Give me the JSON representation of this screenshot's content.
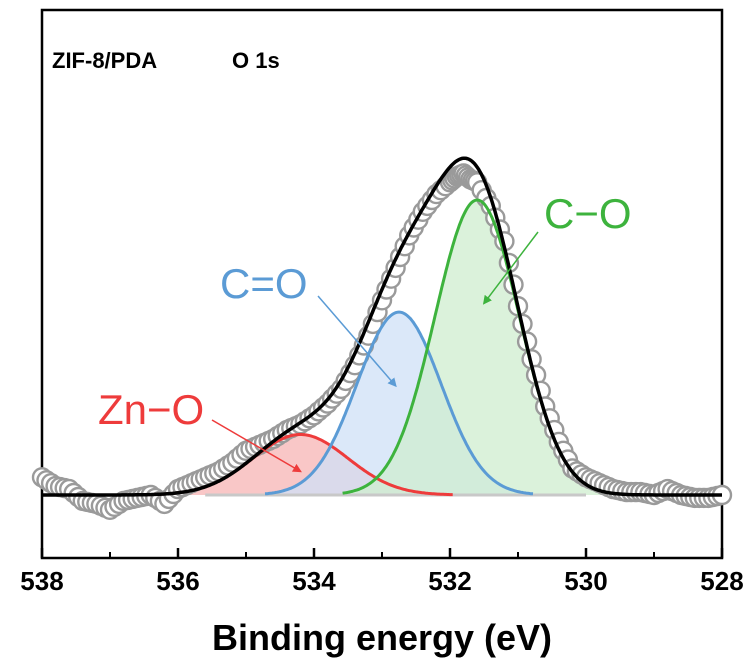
{
  "chart_data": {
    "type": "line",
    "title": "",
    "sample_label": "ZIF-8/PDA",
    "region_label": "O 1s",
    "xlabel": "Binding energy (eV)",
    "ylabel": "",
    "xlim": [
      538,
      528
    ],
    "x_reversed": true,
    "ylim": [
      -0.2,
      1.2
    ],
    "x_ticks": [
      538,
      536,
      534,
      532,
      530,
      528
    ],
    "baseline": 0.0,
    "series": [
      {
        "name": "Zn−O",
        "kind": "component",
        "center": 534.2,
        "amplitude": 0.205,
        "sigma": 0.7,
        "color": "#ee3b3b",
        "fill": "#f7b4b4"
      },
      {
        "name": "C=O",
        "kind": "component",
        "center": 532.75,
        "amplitude": 0.62,
        "sigma": 0.62,
        "color": "#5b9bd5",
        "fill": "#cfe0f7"
      },
      {
        "name": "C−O",
        "kind": "component",
        "center": 531.6,
        "amplitude": 1.0,
        "sigma": 0.62,
        "color": "#3db33d",
        "fill": "#cfeecf"
      },
      {
        "name": "",
        "kind": "envelope",
        "color": "#000000"
      },
      {
        "name": "",
        "kind": "raw",
        "color": "#9a9a9a",
        "x": [
          538.0,
          537.8,
          537.6,
          537.4,
          537.2,
          537.0,
          536.8,
          536.6,
          536.4,
          536.2,
          536.0,
          535.8,
          535.6,
          535.4,
          535.2,
          535.0,
          534.8,
          534.6,
          534.4,
          534.2,
          534.0,
          533.8,
          533.6,
          533.4,
          533.2,
          533.0,
          532.8,
          532.6,
          532.4,
          532.2,
          532.0,
          531.9,
          531.8,
          531.7,
          531.6,
          531.4,
          531.2,
          531.0,
          530.8,
          530.6,
          530.4,
          530.2,
          530.0,
          529.8,
          529.6,
          529.4,
          529.2,
          529.0,
          528.8,
          528.6,
          528.4,
          528.2,
          528.0
        ],
        "y": [
          0.06,
          0.03,
          0.02,
          -0.02,
          -0.03,
          -0.05,
          -0.02,
          -0.01,
          0.0,
          -0.03,
          0.02,
          0.04,
          0.06,
          0.08,
          0.11,
          0.15,
          0.17,
          0.19,
          0.22,
          0.24,
          0.27,
          0.31,
          0.36,
          0.44,
          0.54,
          0.66,
          0.77,
          0.88,
          0.96,
          1.02,
          1.06,
          1.08,
          1.09,
          1.07,
          1.06,
          0.98,
          0.86,
          0.64,
          0.46,
          0.3,
          0.18,
          0.09,
          0.06,
          0.04,
          0.02,
          0.01,
          0.01,
          0.0,
          0.02,
          0.0,
          -0.01,
          -0.01,
          0.0
        ]
      }
    ],
    "annotations": [
      {
        "text": "Zn−O",
        "color": "#ee3b3b",
        "points_to": [
          534.2,
          0.08
        ]
      },
      {
        "text": "C=O",
        "color": "#5b9bd5",
        "points_to": [
          532.8,
          0.37
        ]
      },
      {
        "text": "C−O",
        "color": "#3db33d",
        "points_to": [
          531.5,
          0.65
        ]
      }
    ],
    "grid": false,
    "legend": "none"
  }
}
